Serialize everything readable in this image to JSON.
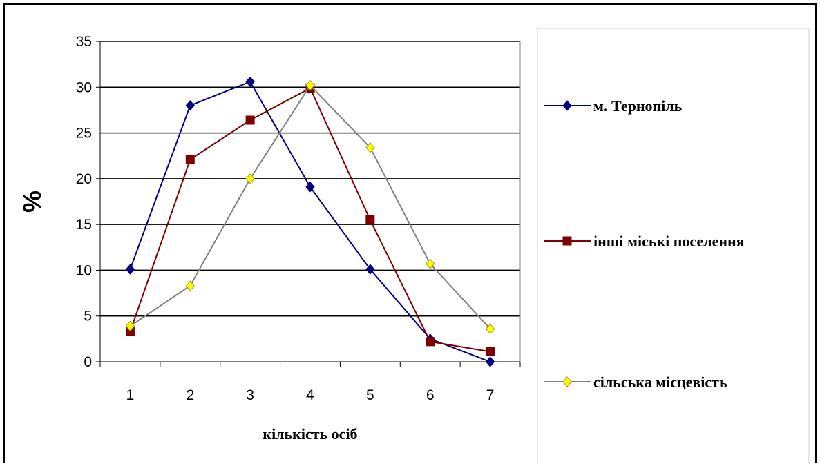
{
  "chart_data": {
    "type": "line",
    "title": "",
    "xlabel": "кількість осіб",
    "ylabel": "%",
    "categories": [
      "1",
      "2",
      "3",
      "4",
      "5",
      "6",
      "7"
    ],
    "ylim": [
      0,
      35
    ],
    "yticks": [
      0,
      5,
      10,
      15,
      20,
      25,
      30,
      35
    ],
    "grid": true,
    "legend_position": "right",
    "series": [
      {
        "name": "м. Тернопіль",
        "color": "#000080",
        "marker": "diamond",
        "marker_fill": "#000080",
        "values": [
          10.1,
          28.0,
          30.6,
          19.1,
          10.1,
          2.5,
          0.0
        ]
      },
      {
        "name": "інші міські поселення",
        "color": "#800000",
        "marker": "square",
        "marker_fill": "#800000",
        "values": [
          3.3,
          22.1,
          26.4,
          29.9,
          15.5,
          2.2,
          1.1
        ]
      },
      {
        "name": "сільська місцевість",
        "color": "#808080",
        "marker": "diamond",
        "marker_fill": "#ffff00",
        "values": [
          3.9,
          8.3,
          20.0,
          30.2,
          23.4,
          10.7,
          3.6
        ]
      }
    ]
  }
}
